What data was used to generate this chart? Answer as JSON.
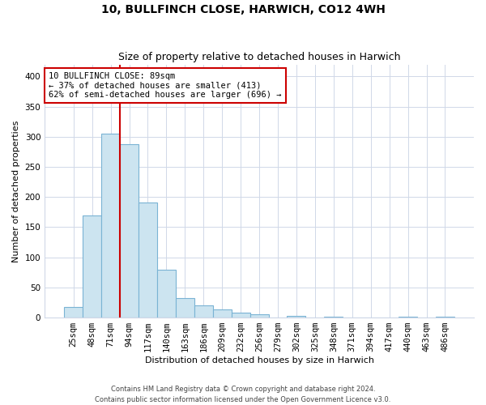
{
  "title": "10, BULLFINCH CLOSE, HARWICH, CO12 4WH",
  "subtitle": "Size of property relative to detached houses in Harwich",
  "xlabel": "Distribution of detached houses by size in Harwich",
  "ylabel": "Number of detached properties",
  "bar_labels": [
    "25sqm",
    "48sqm",
    "71sqm",
    "94sqm",
    "117sqm",
    "140sqm",
    "163sqm",
    "186sqm",
    "209sqm",
    "232sqm",
    "256sqm",
    "279sqm",
    "302sqm",
    "325sqm",
    "348sqm",
    "371sqm",
    "394sqm",
    "417sqm",
    "440sqm",
    "463sqm",
    "486sqm"
  ],
  "bar_values": [
    17,
    169,
    305,
    288,
    191,
    79,
    32,
    20,
    14,
    8,
    5,
    0,
    3,
    0,
    2,
    0,
    0,
    0,
    2,
    0,
    1
  ],
  "bar_color": "#cce4f0",
  "bar_edge_color": "#7ab3d4",
  "property_line_color": "#cc0000",
  "property_line_bar_index": 2,
  "annotation_text": "10 BULLFINCH CLOSE: 89sqm\n← 37% of detached houses are smaller (413)\n62% of semi-detached houses are larger (696) →",
  "annotation_box_facecolor": "#ffffff",
  "annotation_box_edgecolor": "#cc0000",
  "ylim": [
    0,
    420
  ],
  "yticks": [
    0,
    50,
    100,
    150,
    200,
    250,
    300,
    350,
    400
  ],
  "footer_line1": "Contains HM Land Registry data © Crown copyright and database right 2024.",
  "footer_line2": "Contains public sector information licensed under the Open Government Licence v3.0.",
  "background_color": "#ffffff",
  "grid_color": "#d0d8e8",
  "title_fontsize": 10,
  "subtitle_fontsize": 9,
  "axis_label_fontsize": 8,
  "tick_fontsize": 7.5
}
